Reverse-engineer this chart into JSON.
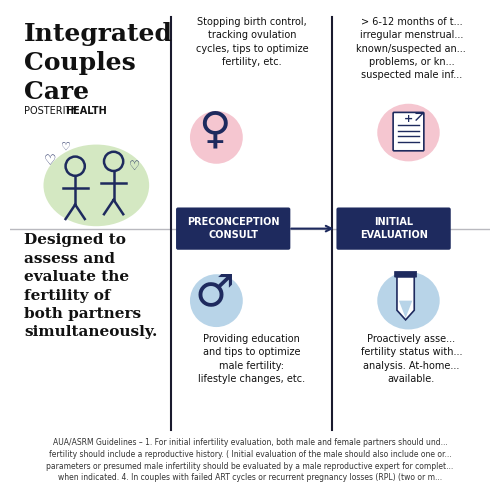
{
  "bg_color": "#ffffff",
  "title_line1": "Integrated",
  "title_line2": "Couples",
  "title_line3": "Care",
  "brand_regular": "POSTERITY",
  "brand_bold": "HEALTH",
  "subtitle": "Designed to\nassess and\nevaluate the\nfertility of\nboth partners\nsimultaneously.",
  "divider_color": "#1a1a2e",
  "box1_label": "PRECONCEPTION\nCONSULT",
  "box2_label": "INITIAL\nEVALUATION",
  "box_color": "#1e2a5e",
  "box_text_color": "#ffffff",
  "female_text": "Stopping birth control,\ntracking ovulation\ncycles, tips to optimize\nfertility, etc.",
  "male_text": "Providing education\nand tips to optimize\nmale fertility:\nlifestyle changes, etc.",
  "eval_female_text": "> 6-12 months of t...\nirregular menstrual...\nknown/suspected an...\nproblems, or kn...\nsuspected male inf...",
  "eval_male_text": "Proactively asse...\nfertility status with...\nanalysis. At-home...\navailable.",
  "female_symbol_color": "#1e2a5e",
  "female_bg_color": "#f5c6d0",
  "male_symbol_color": "#1e2a5e",
  "male_bg_color": "#b8d4e8",
  "document_color": "#1e2a5e",
  "document_bg_color": "#f5c6d0",
  "tube_color": "#1e2a5e",
  "tube_bg_color": "#b8d4e8",
  "footer_text": "AUA/ASRM Guidelines – 1. For initial infertility evaluation, both male and female partners should und...\nfertility should include a reproductive history. ( Initial evaluation of the male should also include one or...\nparameters or presumed male infertility should be evaluated by a male reproductive expert for complet...\nwhen indicated. 4. In couples with failed ART cycles or recurrent pregnancy losses (RPL) (two or m...",
  "couple_icon_color": "#1e2a5e",
  "couple_bg_color": "#d4e8c2",
  "arrow_color": "#1e2a5e"
}
